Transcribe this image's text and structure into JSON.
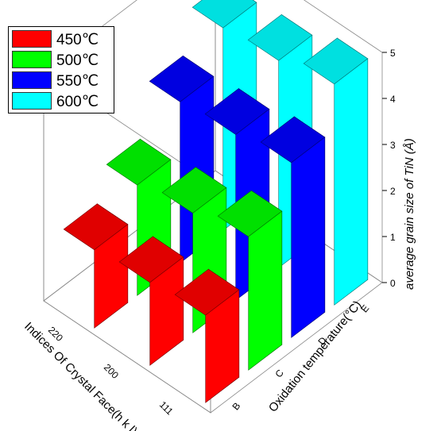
{
  "chart_data": {
    "type": "bar",
    "style": "3d",
    "categories": [
      "111",
      "200",
      "220"
    ],
    "series": [
      {
        "name": "450℃",
        "color": "#ff0000",
        "values": [
          1.9,
          1.8,
          1.7
        ]
      },
      {
        "name": "500℃",
        "color": "#00ff00",
        "values": [
          2.9,
          2.6,
          2.4
        ]
      },
      {
        "name": "550℃",
        "color": "#0000ff",
        "values": [
          3.8,
          3.6,
          3.5
        ]
      },
      {
        "name": "600℃",
        "color": "#00ffff",
        "values": [
          4.8,
          4.5,
          4.4
        ]
      }
    ],
    "x_categories": [
      "B",
      "C",
      "D",
      "E"
    ],
    "xlabel": "Oxidation temperature(°C)",
    "ylabel": "Indices Of Crystal Face(h k l)",
    "zlabel": "average grain size of TiN (Å)",
    "zlim": [
      0,
      5
    ],
    "zticks": [
      0,
      1,
      2,
      3,
      4,
      5
    ],
    "legend_position": "top-left",
    "grid": true
  }
}
